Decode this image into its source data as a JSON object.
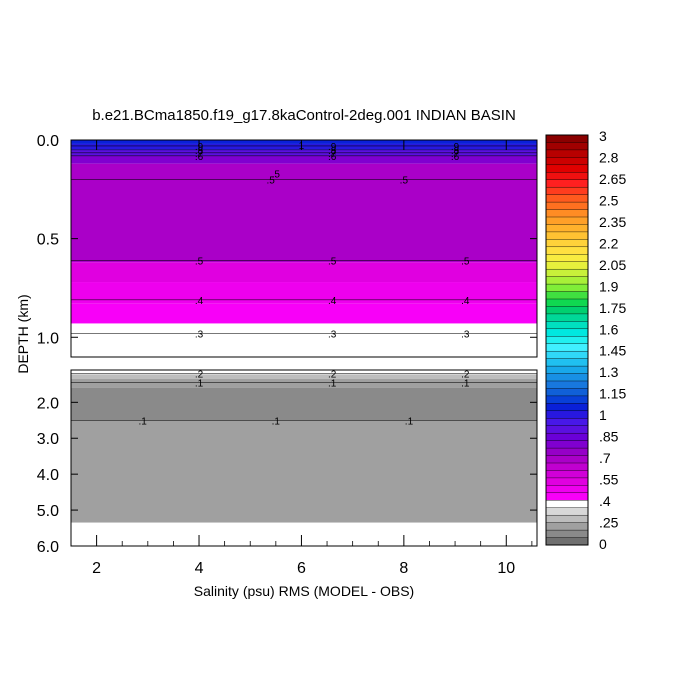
{
  "chart_data": {
    "type": "heatmap",
    "title": "b.e21.BCma1850.f19_g17.8kaControl-2deg.001 INDIAN BASIN",
    "xlabel": "Salinity (psu) RMS (MODEL - OBS)",
    "ylabel": "DEPTH (km)",
    "xlim": [
      1.5,
      10.6
    ],
    "x_ticks": [
      "2",
      "4",
      "6",
      "8",
      "10"
    ],
    "x_tick_values": [
      2,
      4,
      6,
      8,
      10
    ],
    "upper_panel": {
      "ylim": [
        0.0,
        1.1
      ],
      "y_ticks": [
        "0.0",
        "0.5",
        "1.0"
      ],
      "y_tick_values": [
        0.0,
        0.5,
        1.0
      ],
      "bands": [
        {
          "top": 0.0,
          "bottom": 0.02,
          "value": 1.0
        },
        {
          "top": 0.02,
          "bottom": 0.05,
          "value": 0.95
        },
        {
          "top": 0.05,
          "bottom": 0.08,
          "value": 0.85
        },
        {
          "top": 0.08,
          "bottom": 0.12,
          "value": 0.75
        },
        {
          "top": 0.12,
          "bottom": 0.62,
          "value": 0.6
        },
        {
          "top": 0.62,
          "bottom": 0.72,
          "value": 0.47
        },
        {
          "top": 0.72,
          "bottom": 0.83,
          "value": 0.42
        },
        {
          "top": 0.83,
          "bottom": 0.93,
          "value": 0.37
        },
        {
          "top": 0.93,
          "bottom": 1.1,
          "value": 0.3
        }
      ],
      "contours": [
        {
          "depth": 0.03,
          "label": ".9",
          "label_x": [
            4.0,
            6.6,
            9.0
          ]
        },
        {
          "depth": 0.05,
          "label": ".8",
          "label_x": [
            4.0,
            6.6,
            9.0
          ]
        },
        {
          "depth": 0.065,
          "label": ".7",
          "label_x": [
            4.0,
            6.6,
            9.0
          ]
        },
        {
          "depth": 0.08,
          "label": ".6",
          "label_x": [
            4.0,
            6.6,
            9.0
          ]
        },
        {
          "depth": 0.2,
          "label": ".5",
          "label_x": [
            5.4,
            8.0
          ]
        },
        {
          "depth": 0.61,
          "label": ".5",
          "label_x": [
            4.0,
            6.6,
            9.2
          ]
        },
        {
          "depth": 0.81,
          "label": ".4",
          "label_x": [
            4.0,
            6.6,
            9.2
          ]
        },
        {
          "depth": 0.98,
          "label": ".3",
          "label_x": [
            4.0,
            6.6,
            9.2
          ]
        }
      ],
      "extra_labels": [
        {
          "x": 5.5,
          "depth": 0.17,
          "label": ".5"
        },
        {
          "x": 6.0,
          "depth": 0.025,
          "label": "1"
        }
      ]
    },
    "lower_panel": {
      "ylim": [
        1.1,
        6.0
      ],
      "y_ticks": [
        "2.0",
        "3.0",
        "4.0",
        "5.0",
        "6.0"
      ],
      "y_tick_values": [
        2.0,
        3.0,
        4.0,
        5.0,
        6.0
      ],
      "data_bottom": 5.35,
      "bands": [
        {
          "top": 1.1,
          "bottom": 1.22,
          "value": 0.3
        },
        {
          "top": 1.22,
          "bottom": 1.35,
          "value": 0.2
        },
        {
          "top": 1.35,
          "bottom": 1.6,
          "value": 0.12
        },
        {
          "top": 1.6,
          "bottom": 2.5,
          "value": 0.07
        },
        {
          "top": 2.5,
          "bottom": 5.35,
          "value": 0.12
        }
      ],
      "contours": [
        {
          "depth": 1.2,
          "label": ".2",
          "label_x": [
            4.0,
            6.6,
            9.2
          ]
        },
        {
          "depth": 1.45,
          "label": ".1",
          "label_x": [
            4.0,
            6.6,
            9.2
          ]
        },
        {
          "depth": 2.5,
          "label": ".1",
          "label_x": [
            2.9,
            5.5,
            8.1
          ]
        }
      ]
    },
    "colorbar": {
      "labels": [
        "3",
        "2.8",
        "2.65",
        "2.5",
        "2.35",
        "2.2",
        "2.05",
        "1.9",
        "1.75",
        "1.6",
        "1.45",
        "1.3",
        "1.15",
        "1",
        ".85",
        ".7",
        ".55",
        ".4",
        ".25",
        "0"
      ],
      "colors": [
        "#8a0000",
        "#a00000",
        "#b80000",
        "#cc0000",
        "#e00000",
        "#f01010",
        "#ff2020",
        "#ff3c1e",
        "#ff5a1e",
        "#ff7020",
        "#ff8c24",
        "#ffa028",
        "#ffb22c",
        "#ffc232",
        "#ffd23a",
        "#ffe040",
        "#f8ec40",
        "#e6f03c",
        "#c8f03a",
        "#a8f038",
        "#80ee38",
        "#40e040",
        "#10d850",
        "#00d070",
        "#00d898",
        "#00e0c0",
        "#00e8e0",
        "#20f0f0",
        "#40f0ff",
        "#30d8f8",
        "#20c0f0",
        "#18a8ea",
        "#1890e4",
        "#1878de",
        "#1060d8",
        "#0840d8",
        "#0a20d8",
        "#2818e0",
        "#4818e8",
        "#5a10e0",
        "#6a00d8",
        "#8000d0",
        "#9600c8",
        "#aa00c8",
        "#c000d0",
        "#d000d8",
        "#e000e0",
        "#ee00ee",
        "#f800f8",
        "#ffffff",
        "#d8d8d8",
        "#bdbdbd",
        "#a0a0a0",
        "#8a8a8a",
        "#707070"
      ]
    }
  }
}
